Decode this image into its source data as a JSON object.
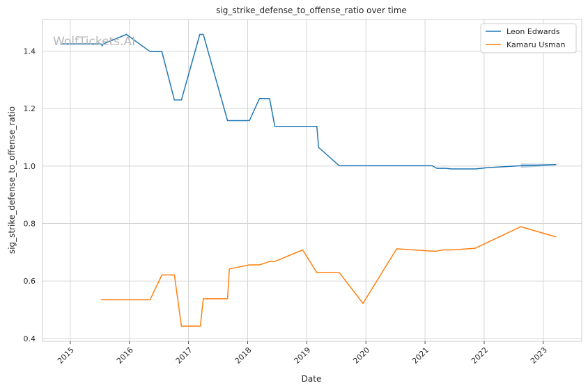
{
  "chart_data": {
    "type": "line",
    "title": "sig_strike_defense_to_offense_ratio over time",
    "xlabel": "Date",
    "ylabel": "sig_strike_defense_to_offense_ratio",
    "watermark": "WolfTickets.AI",
    "xlim": [
      2014.53,
      2023.65
    ],
    "ylim": [
      0.39,
      1.51
    ],
    "x_ticks": [
      2015,
      2016,
      2017,
      2018,
      2019,
      2020,
      2021,
      2022,
      2023
    ],
    "y_ticks": [
      0.4,
      0.6,
      0.8,
      1.0,
      1.2,
      1.4
    ],
    "y_tick_labels": [
      "0.4",
      "0.6",
      "0.8",
      "1.0",
      "1.2",
      "1.4"
    ],
    "grid": true,
    "legend_position": "top-right",
    "series": [
      {
        "name": "Leon Edwards",
        "color": "#1f77b4",
        "points": [
          [
            2014.85,
            1.425
          ],
          [
            2015.52,
            1.425
          ],
          [
            2015.54,
            1.418
          ],
          [
            2015.56,
            1.425
          ],
          [
            2015.95,
            1.458
          ],
          [
            2016.35,
            1.398
          ],
          [
            2016.55,
            1.398
          ],
          [
            2016.76,
            1.23
          ],
          [
            2016.88,
            1.23
          ],
          [
            2017.19,
            1.458
          ],
          [
            2017.25,
            1.458
          ],
          [
            2017.66,
            1.158
          ],
          [
            2018.03,
            1.158
          ],
          [
            2018.2,
            1.235
          ],
          [
            2018.37,
            1.235
          ],
          [
            2018.46,
            1.138
          ],
          [
            2019.17,
            1.138
          ],
          [
            2019.2,
            1.065
          ],
          [
            2019.55,
            1.001
          ],
          [
            2021.12,
            1.001
          ],
          [
            2021.2,
            0.992
          ],
          [
            2021.35,
            0.992
          ],
          [
            2021.45,
            0.99
          ],
          [
            2021.85,
            0.99
          ],
          [
            2022.05,
            0.994
          ],
          [
            2022.62,
            1.001
          ],
          [
            2023.22,
            1.005
          ]
        ],
        "ci_band": [
          [
            2022.62,
            0.993,
            1.009
          ],
          [
            2023.22,
            1.003,
            1.007
          ]
        ]
      },
      {
        "name": "Kamaru Usman",
        "color": "#ff7f0e",
        "points": [
          [
            2015.52,
            0.535
          ],
          [
            2016.35,
            0.535
          ],
          [
            2016.55,
            0.621
          ],
          [
            2016.76,
            0.621
          ],
          [
            2016.88,
            0.443
          ],
          [
            2017.2,
            0.443
          ],
          [
            2017.25,
            0.538
          ],
          [
            2017.66,
            0.538
          ],
          [
            2017.69,
            0.642
          ],
          [
            2018.03,
            0.656
          ],
          [
            2018.2,
            0.656
          ],
          [
            2018.37,
            0.668
          ],
          [
            2018.46,
            0.668
          ],
          [
            2018.93,
            0.708
          ],
          [
            2019.17,
            0.629
          ],
          [
            2019.55,
            0.629
          ],
          [
            2019.95,
            0.522
          ],
          [
            2020.52,
            0.712
          ],
          [
            2021.12,
            0.704
          ],
          [
            2021.2,
            0.704
          ],
          [
            2021.3,
            0.708
          ],
          [
            2021.45,
            0.708
          ],
          [
            2021.85,
            0.714
          ],
          [
            2022.62,
            0.789
          ],
          [
            2023.22,
            0.753
          ]
        ]
      }
    ]
  }
}
